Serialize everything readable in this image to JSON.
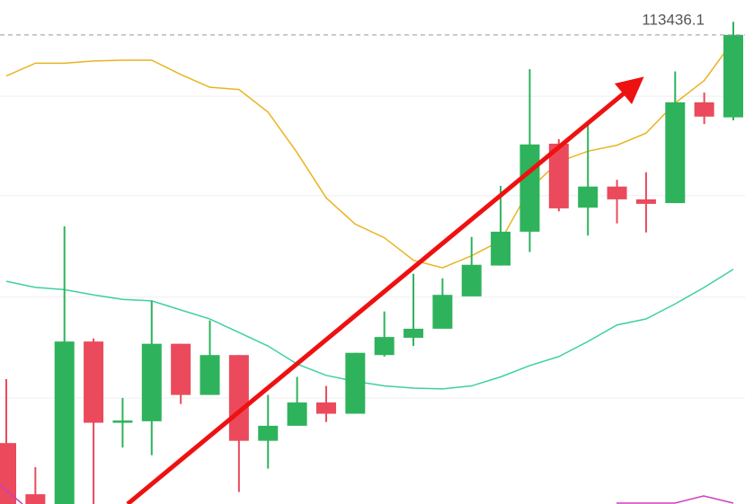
{
  "chart_data": {
    "type": "candlestick",
    "ylim": [
      107200,
      113900
    ],
    "grid_values": [
      112620,
      111300,
      109950,
      108610
    ],
    "up_color": "#2eb35c",
    "down_color": "#ea4a5c",
    "open": [
      108010,
      107330,
      107200,
      109360,
      108280,
      108300,
      109330,
      108650,
      109180,
      108040,
      108240,
      108550,
      108400,
      109180,
      109410,
      109530,
      109960,
      110370,
      110820,
      111990,
      111140,
      111420,
      111250,
      111200,
      112540,
      112340
    ],
    "high": [
      108860,
      107690,
      110890,
      109400,
      108610,
      109900,
      109330,
      109640,
      109180,
      108650,
      108890,
      108770,
      109210,
      109760,
      110260,
      110200,
      110750,
      111430,
      112980,
      112050,
      112290,
      111510,
      111610,
      112950,
      112670,
      113610
    ],
    "low": [
      107200,
      107200,
      107200,
      107200,
      107950,
      107850,
      108530,
      108650,
      107360,
      107670,
      108240,
      108290,
      108400,
      109160,
      109300,
      109530,
      109960,
      110370,
      110550,
      111090,
      110770,
      110930,
      110810,
      111200,
      112250,
      112300
    ],
    "close": [
      107200,
      107200,
      109360,
      108280,
      108310,
      109330,
      108650,
      109180,
      108040,
      108240,
      108550,
      108400,
      109210,
      109420,
      109530,
      109980,
      110380,
      110820,
      111980,
      111130,
      111420,
      111250,
      111190,
      112540,
      112350,
      113436.1
    ],
    "lines": [
      {
        "color": "#e9b420",
        "values": [
          112890,
          113060,
          113060,
          113090,
          113100,
          113100,
          112910,
          112740,
          112710,
          112410,
          111870,
          111270,
          110920,
          110740,
          110440,
          110340,
          110500,
          110700,
          111390,
          111750,
          111890,
          111970,
          112130,
          112530,
          112830,
          113360
        ]
      },
      {
        "color": "#3ecfa6",
        "values": [
          110160,
          110080,
          110050,
          109980,
          109920,
          109900,
          109780,
          109660,
          109480,
          109300,
          109060,
          108910,
          108830,
          108770,
          108740,
          108730,
          108770,
          108890,
          109040,
          109160,
          109360,
          109580,
          109660,
          109860,
          110080,
          110320
        ]
      }
    ],
    "last_price": 113436.1
  }
}
